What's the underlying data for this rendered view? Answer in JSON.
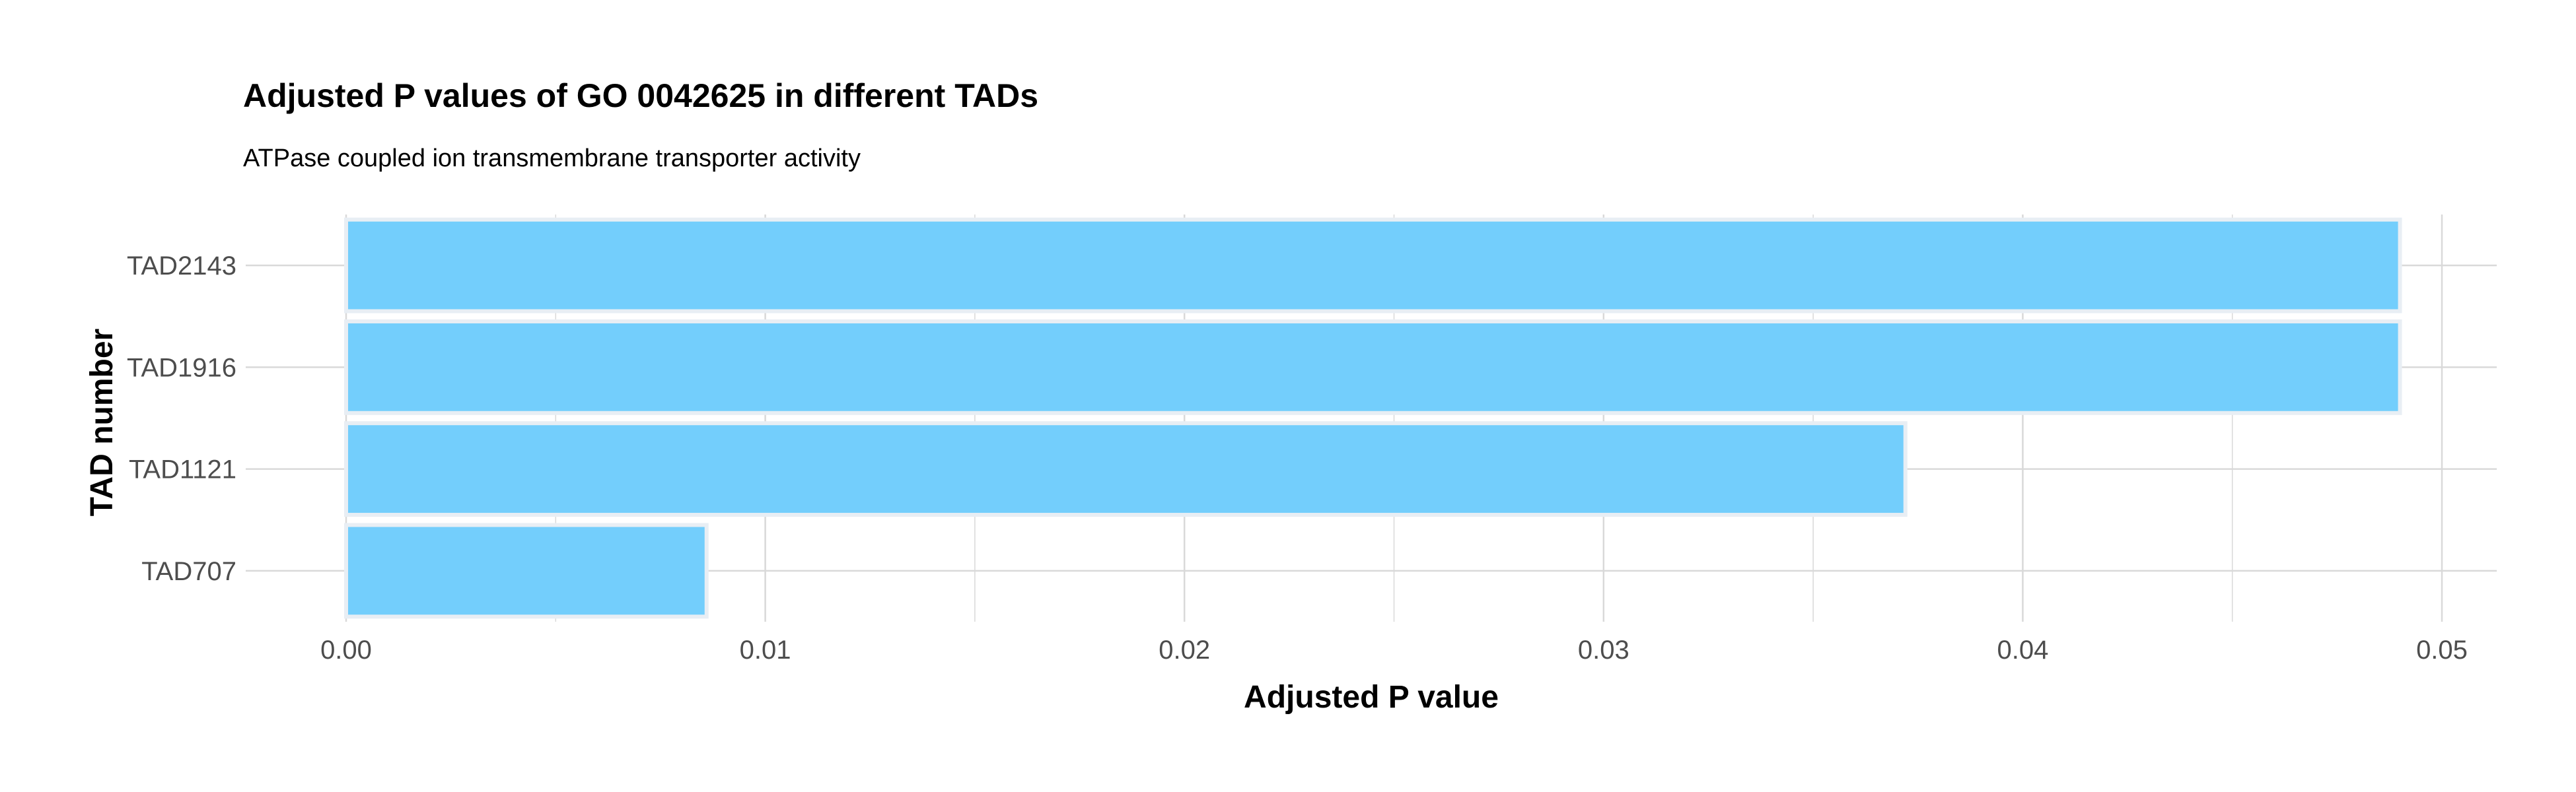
{
  "chart_data": {
    "type": "bar",
    "orientation": "horizontal",
    "title": "Adjusted P values of GO 0042625 in different TADs",
    "subtitle": "ATPase coupled ion transmembrane transporter activity",
    "xlabel": "Adjusted P value",
    "ylabel": "TAD number",
    "categories": [
      "TAD2143",
      "TAD1916",
      "TAD1121",
      "TAD707"
    ],
    "values": [
      0.049,
      0.049,
      0.0372,
      0.0086
    ],
    "xlim": [
      0,
      0.0514
    ],
    "xticks": [
      0.0,
      0.01,
      0.02,
      0.03,
      0.04,
      0.05
    ],
    "xtick_labels": [
      "0.00",
      "0.01",
      "0.02",
      "0.03",
      "0.04",
      "0.05"
    ],
    "grid": true,
    "bar_color": "#73cefc",
    "bar_edge_color": "#e8eef4",
    "grid_color": "#d9d9d9"
  }
}
